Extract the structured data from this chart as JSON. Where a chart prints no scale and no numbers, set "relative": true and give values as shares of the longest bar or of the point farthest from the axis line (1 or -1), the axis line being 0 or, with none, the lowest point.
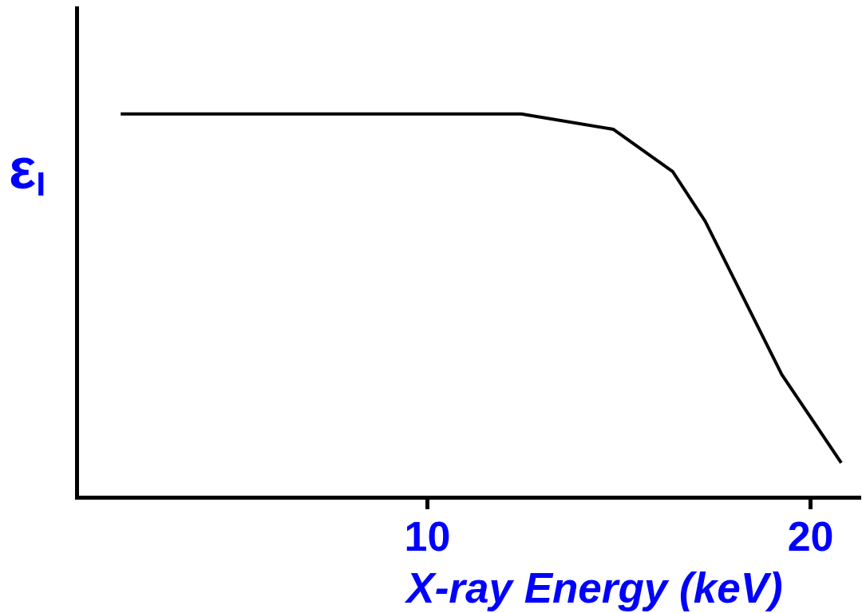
{
  "chart_data": {
    "type": "line",
    "xlabel": "X-ray Energy (keV)",
    "ylabel": "ε$_{I}$",
    "x": [
      2.0,
      12.45,
      14.85,
      16.4,
      17.25,
      19.25,
      20.8
    ],
    "series": [
      {
        "color": "#000000",
        "values": [
          1,
          1,
          0.96,
          0.85,
          0.72,
          0.32,
          0.09
        ]
      }
    ],
    "relative": true,
    "xlim": [
      0.85,
      21.3
    ],
    "xticks": [
      10,
      20
    ]
  }
}
